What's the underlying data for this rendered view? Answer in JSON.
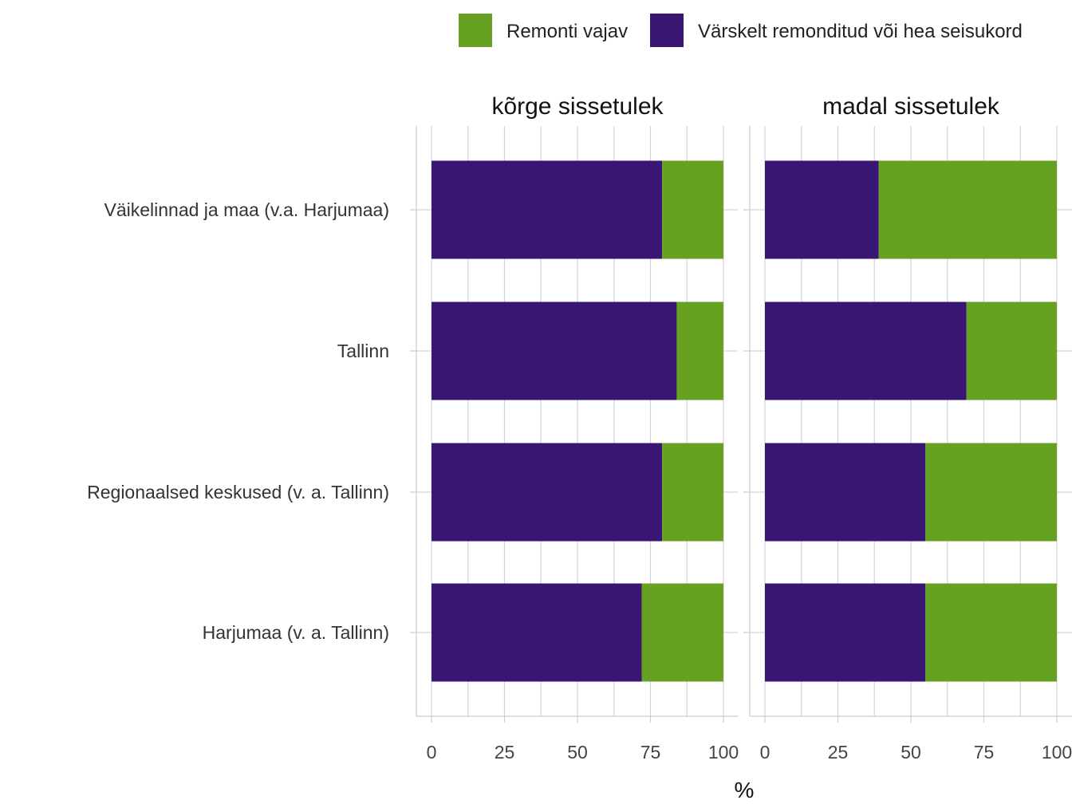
{
  "chart_data": {
    "type": "bar",
    "orientation": "horizontal",
    "stacked": true,
    "xlabel": "%",
    "ylabel": "",
    "xlim": [
      0,
      100
    ],
    "xticks": [
      0,
      25,
      50,
      75,
      100
    ],
    "grid": true,
    "legend_position": "top-right",
    "legend": [
      {
        "key": "remont",
        "label": "Remonti vajav",
        "color": "#67a121"
      },
      {
        "key": "hea",
        "label": "Värskelt remonditud või hea seisukord",
        "color": "#381672"
      }
    ],
    "categories": [
      "Väikelinnad ja maa (v.a. Harjumaa)",
      "Tallinn",
      "Regionaalsed keskused (v. a. Tallinn)",
      "Harjumaa (v. a. Tallinn)"
    ],
    "facets": [
      {
        "title": "kõrge sissetulek",
        "series": [
          {
            "name": "Värskelt remonditud või hea seisukord",
            "key": "hea",
            "values": [
              79,
              84,
              79,
              72
            ]
          },
          {
            "name": "Remonti vajav",
            "key": "remont",
            "values": [
              21,
              16,
              21,
              28
            ]
          }
        ]
      },
      {
        "title": "madal sissetulek",
        "series": [
          {
            "name": "Värskelt remonditud või hea seisukord",
            "key": "hea",
            "values": [
              39,
              69,
              55,
              55
            ]
          },
          {
            "name": "Remonti vajav",
            "key": "remont",
            "values": [
              61,
              31,
              45,
              45
            ]
          }
        ]
      }
    ]
  }
}
